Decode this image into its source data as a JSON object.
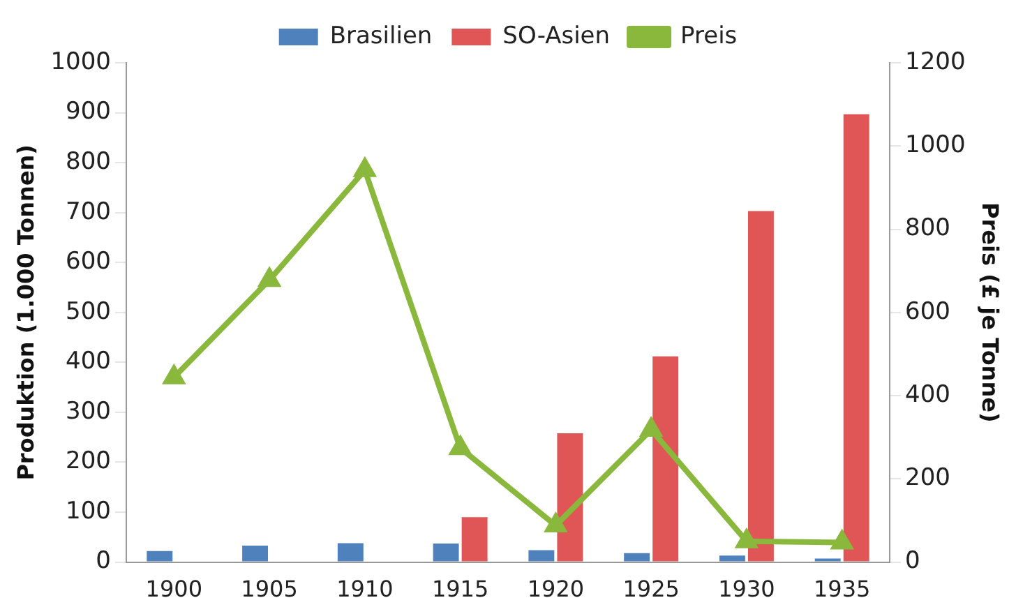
{
  "chart_data": {
    "type": "bar",
    "ylabel": "Produktion (1.000 Tonnen)",
    "y2label": "Preis (£ je Tonne)",
    "categories": [
      "1900",
      "1905",
      "1910",
      "1915",
      "1920",
      "1925",
      "1930",
      "1935"
    ],
    "series": [
      {
        "name": "Brasilien",
        "color": "#4f81bd",
        "values": [
          22,
          33,
          38,
          37,
          24,
          18,
          13,
          7
        ]
      },
      {
        "name": "SO-Asien",
        "color": "#e05555",
        "values": [
          0,
          0,
          0,
          90,
          258,
          412,
          703,
          897
        ]
      },
      {
        "name": "Preis",
        "type": "line",
        "axis": "y2",
        "color": "#8ab83c",
        "marker": "triangle",
        "values": [
          444,
          678,
          942,
          274,
          88,
          318,
          50,
          47
        ]
      }
    ],
    "ylim": [
      0,
      1000
    ],
    "yticks": [
      0,
      100,
      200,
      300,
      400,
      500,
      600,
      700,
      800,
      900,
      1000
    ],
    "y2lim": [
      0,
      1200
    ],
    "y2ticks": [
      0,
      200,
      400,
      600,
      800,
      1000,
      1200
    ],
    "legend": "top",
    "grid": false
  }
}
